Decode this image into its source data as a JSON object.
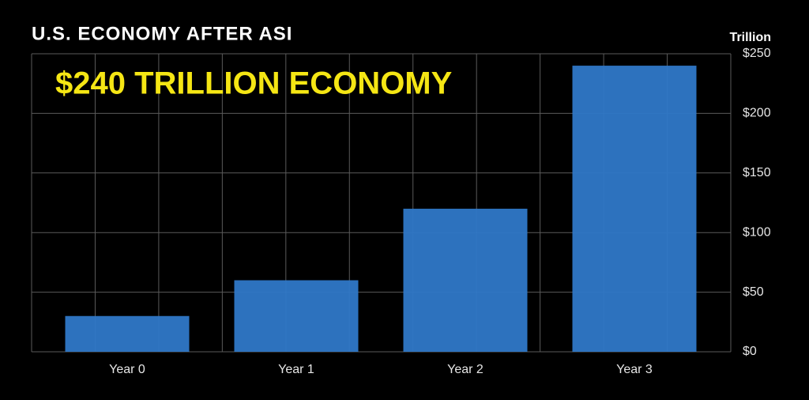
{
  "chart_data": {
    "type": "bar",
    "title": "U.S. ECONOMY AFTER ASI",
    "annotation": "$240 TRILLION ECONOMY",
    "y_axis_label": "Trillion",
    "categories": [
      "Year 0",
      "Year 1",
      "Year 2",
      "Year 3"
    ],
    "values": [
      30,
      60,
      120,
      240
    ],
    "color": "#2f78c8",
    "ylim": [
      0,
      250
    ],
    "yticks": [
      {
        "value": 0,
        "label": "$0"
      },
      {
        "value": 50,
        "label": "$50"
      },
      {
        "value": 100,
        "label": "$100"
      },
      {
        "value": 150,
        "label": "$150"
      },
      {
        "value": 200,
        "label": "$200"
      },
      {
        "value": 250,
        "label": "$250"
      }
    ],
    "grid": true,
    "annotation_color": "#f5e614"
  }
}
